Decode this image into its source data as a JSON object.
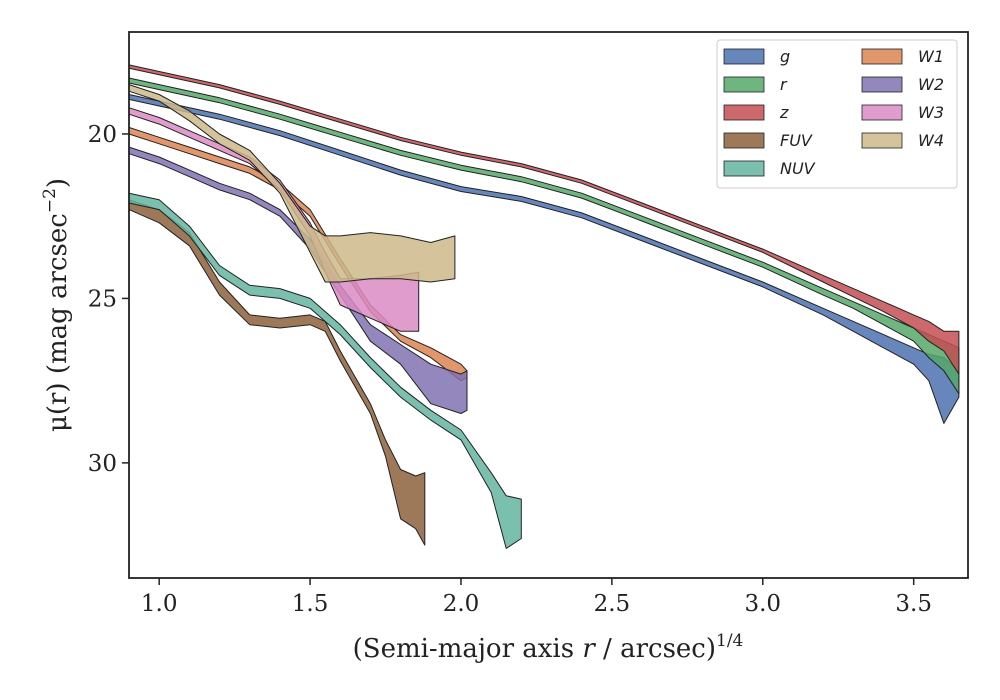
{
  "chart_data": {
    "type": "area",
    "xlabel_main": "(Semi-major axis ",
    "xlabel_var": "r",
    "xlabel_tail": " / arcsec)",
    "xlabel_exp": "1/4",
    "ylabel_main": "μ(r) (mag arcsec",
    "ylabel_exp": "−2",
    "ylabel_close": ")",
    "xlim": [
      0.9,
      3.68
    ],
    "ylim": [
      33.5,
      16.9
    ],
    "y_inverted": true,
    "xticks": [
      1.0,
      1.5,
      2.0,
      2.5,
      3.0,
      3.5
    ],
    "xtick_labels": [
      "1.0",
      "1.5",
      "2.0",
      "2.5",
      "3.0",
      "3.5"
    ],
    "yticks": [
      20,
      25,
      30
    ],
    "ytick_labels": [
      "20",
      "25",
      "30"
    ],
    "legend_position": "top-right",
    "series": [
      {
        "name": "g",
        "color": "#4c72b0",
        "x": [
          0.9,
          1.0,
          1.2,
          1.4,
          1.6,
          1.8,
          2.0,
          2.2,
          2.4,
          2.6,
          2.8,
          3.0,
          3.2,
          3.3,
          3.4,
          3.5,
          3.55,
          3.6,
          3.65
        ],
        "y_upper": [
          18.8,
          19.0,
          19.4,
          19.9,
          20.5,
          21.1,
          21.6,
          21.9,
          22.4,
          23.1,
          23.8,
          24.5,
          25.3,
          25.7,
          26.1,
          26.5,
          26.7,
          26.8,
          27.2
        ],
        "y_lower": [
          18.95,
          19.15,
          19.55,
          20.05,
          20.65,
          21.25,
          21.75,
          22.05,
          22.55,
          23.25,
          23.95,
          24.65,
          25.5,
          26.0,
          26.5,
          27.0,
          27.5,
          28.8,
          28.0
        ]
      },
      {
        "name": "r",
        "color": "#55a868",
        "x": [
          0.9,
          1.0,
          1.2,
          1.4,
          1.6,
          1.8,
          2.0,
          2.2,
          2.4,
          2.6,
          2.8,
          3.0,
          3.2,
          3.3,
          3.4,
          3.5,
          3.55,
          3.6,
          3.65
        ],
        "y_upper": [
          18.3,
          18.5,
          18.9,
          19.4,
          19.95,
          20.5,
          20.95,
          21.3,
          21.8,
          22.5,
          23.2,
          23.9,
          24.7,
          25.1,
          25.5,
          25.9,
          26.1,
          26.3,
          26.5
        ],
        "y_lower": [
          18.45,
          18.65,
          19.05,
          19.55,
          20.1,
          20.65,
          21.1,
          21.45,
          21.95,
          22.65,
          23.35,
          24.05,
          24.9,
          25.3,
          25.8,
          26.3,
          26.8,
          27.2,
          27.9
        ]
      },
      {
        "name": "z",
        "color": "#c44e52",
        "x": [
          0.9,
          1.0,
          1.2,
          1.4,
          1.6,
          1.8,
          2.0,
          2.2,
          2.4,
          2.6,
          2.8,
          3.0,
          3.2,
          3.3,
          3.4,
          3.5,
          3.55,
          3.6,
          3.65
        ],
        "y_upper": [
          17.9,
          18.1,
          18.5,
          19.0,
          19.55,
          20.1,
          20.55,
          20.9,
          21.4,
          22.1,
          22.8,
          23.5,
          24.3,
          24.7,
          25.1,
          25.5,
          25.7,
          26.0,
          26.0
        ],
        "y_lower": [
          18.0,
          18.2,
          18.6,
          19.1,
          19.65,
          20.2,
          20.65,
          21.0,
          21.5,
          22.2,
          22.9,
          23.6,
          24.5,
          24.95,
          25.4,
          25.9,
          26.3,
          26.6,
          27.3
        ]
      },
      {
        "name": "FUV",
        "color": "#8c613c",
        "x": [
          0.9,
          1.0,
          1.1,
          1.2,
          1.3,
          1.4,
          1.5,
          1.55,
          1.6,
          1.7,
          1.75,
          1.8,
          1.85,
          1.88
        ],
        "y_upper": [
          22.0,
          22.3,
          23.0,
          24.5,
          25.5,
          25.6,
          25.5,
          25.7,
          26.6,
          28.2,
          29.3,
          30.2,
          30.4,
          30.3
        ],
        "y_lower": [
          22.3,
          22.7,
          23.4,
          24.9,
          25.8,
          25.9,
          25.8,
          26.0,
          26.9,
          28.5,
          29.8,
          31.7,
          32.0,
          32.5
        ]
      },
      {
        "name": "NUV",
        "color": "#64b5a0",
        "x": [
          0.9,
          1.0,
          1.1,
          1.2,
          1.3,
          1.4,
          1.5,
          1.6,
          1.7,
          1.8,
          1.9,
          2.0,
          2.1,
          2.15,
          2.2
        ],
        "y_upper": [
          21.8,
          22.0,
          22.8,
          24.0,
          24.6,
          24.7,
          25.0,
          25.8,
          26.8,
          27.7,
          28.4,
          29.0,
          30.3,
          31.0,
          31.1
        ],
        "y_lower": [
          22.1,
          22.3,
          23.1,
          24.3,
          24.9,
          25.0,
          25.3,
          26.1,
          27.1,
          28.0,
          28.7,
          29.3,
          30.9,
          32.6,
          32.3
        ]
      },
      {
        "name": "W1",
        "color": "#dd8452",
        "x": [
          0.9,
          1.0,
          1.1,
          1.2,
          1.3,
          1.4,
          1.5,
          1.6,
          1.7,
          1.8,
          1.9,
          2.0,
          2.02
        ],
        "y_upper": [
          19.8,
          20.1,
          20.4,
          20.7,
          21.0,
          21.5,
          22.3,
          23.8,
          25.2,
          26.1,
          26.5,
          27.0,
          27.2
        ],
        "y_lower": [
          20.0,
          20.3,
          20.6,
          20.9,
          21.2,
          21.7,
          22.5,
          24.0,
          25.4,
          26.3,
          26.8,
          27.5,
          27.4
        ]
      },
      {
        "name": "W2",
        "color": "#8172b2",
        "x": [
          0.9,
          1.0,
          1.1,
          1.2,
          1.3,
          1.4,
          1.5,
          1.6,
          1.7,
          1.8,
          1.9,
          2.0,
          2.02
        ],
        "y_upper": [
          20.4,
          20.7,
          21.1,
          21.5,
          21.8,
          22.3,
          23.2,
          24.6,
          25.8,
          26.4,
          27.0,
          27.3,
          27.2
        ],
        "y_lower": [
          20.6,
          20.9,
          21.3,
          21.7,
          22.0,
          22.5,
          23.5,
          24.9,
          26.3,
          27.0,
          28.2,
          28.5,
          28.4
        ]
      },
      {
        "name": "W3",
        "color": "#da8bc3",
        "x": [
          0.9,
          1.0,
          1.1,
          1.2,
          1.3,
          1.4,
          1.5,
          1.55,
          1.6,
          1.7,
          1.8,
          1.86
        ],
        "y_upper": [
          19.2,
          19.5,
          19.9,
          20.3,
          20.7,
          21.4,
          22.7,
          23.6,
          24.4,
          24.4,
          24.3,
          24.2
        ],
        "y_lower": [
          19.4,
          19.7,
          20.1,
          20.5,
          20.9,
          21.7,
          23.1,
          24.2,
          25.2,
          25.6,
          26.0,
          26.0
        ]
      },
      {
        "name": "W4",
        "color": "#ccb98a",
        "x": [
          0.9,
          1.0,
          1.1,
          1.2,
          1.3,
          1.4,
          1.5,
          1.55,
          1.6,
          1.7,
          1.8,
          1.9,
          1.98
        ],
        "y_upper": [
          18.5,
          18.8,
          19.3,
          20.0,
          20.5,
          21.5,
          22.8,
          23.1,
          23.1,
          23.0,
          23.1,
          23.3,
          23.1
        ],
        "y_lower": [
          18.7,
          19.0,
          19.6,
          20.3,
          20.8,
          21.8,
          23.6,
          24.5,
          24.5,
          24.4,
          24.4,
          24.5,
          24.4
        ]
      }
    ],
    "legend_col1": [
      "g",
      "r",
      "z",
      "FUV",
      "NUV"
    ],
    "legend_col2": [
      "W1",
      "W2",
      "W3",
      "W4"
    ]
  }
}
